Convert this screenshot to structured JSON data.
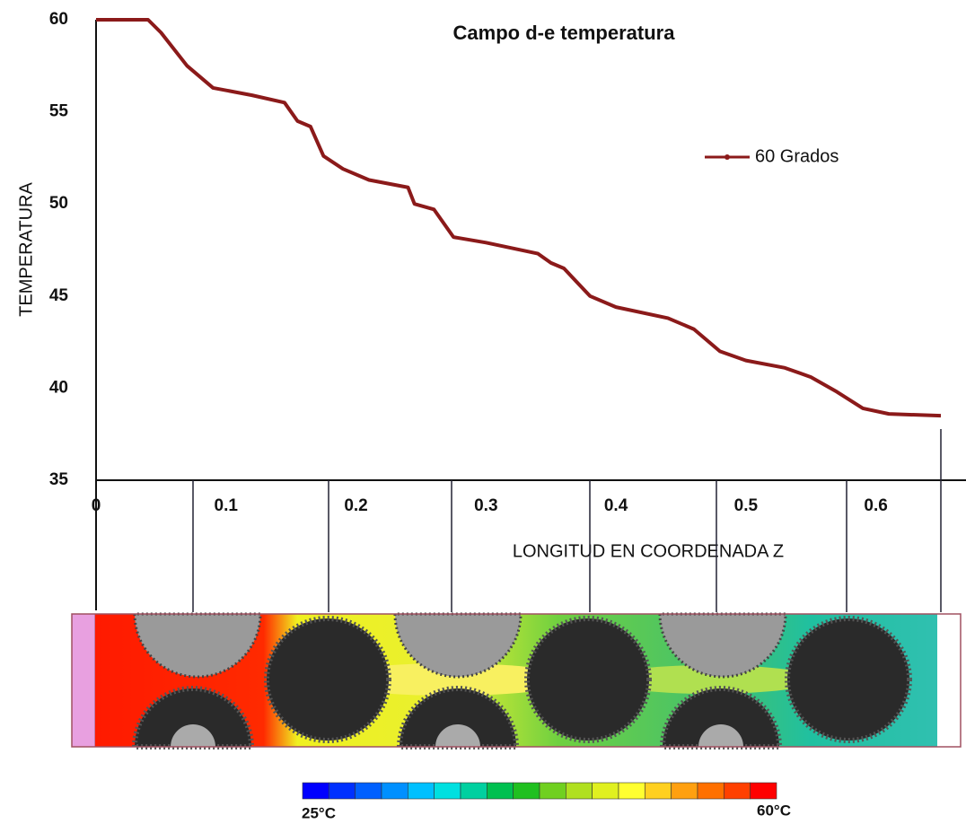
{
  "chart_data": {
    "type": "line",
    "title": "Campo d-e temperatura",
    "x_label": "LONGITUD  EN COORDENADA  Z",
    "y_label": "TEMPERATURA",
    "x": [
      0,
      0.04,
      0.05,
      0.07,
      0.09,
      0.12,
      0.145,
      0.155,
      0.165,
      0.175,
      0.19,
      0.21,
      0.24,
      0.245,
      0.26,
      0.275,
      0.3,
      0.34,
      0.35,
      0.36,
      0.38,
      0.4,
      0.44,
      0.46,
      0.48,
      0.5,
      0.53,
      0.55,
      0.57,
      0.59,
      0.61,
      0.65
    ],
    "series": [
      {
        "name": "60 Grados",
        "color": "#8b1a1a",
        "values": [
          60,
          60,
          59.3,
          57.5,
          56.3,
          55.9,
          55.5,
          54.5,
          54.2,
          52.6,
          51.9,
          51.3,
          50.9,
          50.0,
          49.7,
          48.2,
          47.9,
          47.3,
          46.8,
          46.5,
          45.0,
          44.4,
          43.8,
          43.2,
          42.0,
          41.5,
          41.1,
          40.6,
          39.8,
          38.9,
          38.6,
          38.5
        ]
      }
    ],
    "xlim": [
      0,
      0.65
    ],
    "ylim": [
      35,
      60
    ],
    "xticks": [
      0,
      0.1,
      0.2,
      0.3,
      0.4,
      0.5,
      0.6
    ],
    "yticks": [
      35,
      40,
      45,
      50,
      55,
      60
    ],
    "grid": false,
    "legend": "upper right",
    "colorbar_labels": [
      "25°C",
      "60°C"
    ],
    "colorbar_colors": [
      "#0000ff",
      "#0030ff",
      "#0060ff",
      "#0090ff",
      "#00c0ff",
      "#00e0e0",
      "#00d0a0",
      "#00c050",
      "#20c020",
      "#70d020",
      "#b0e020",
      "#e0f020",
      "#ffff30",
      "#ffd020",
      "#ffa010",
      "#ff7000",
      "#ff4000",
      "#ff0000"
    ]
  }
}
